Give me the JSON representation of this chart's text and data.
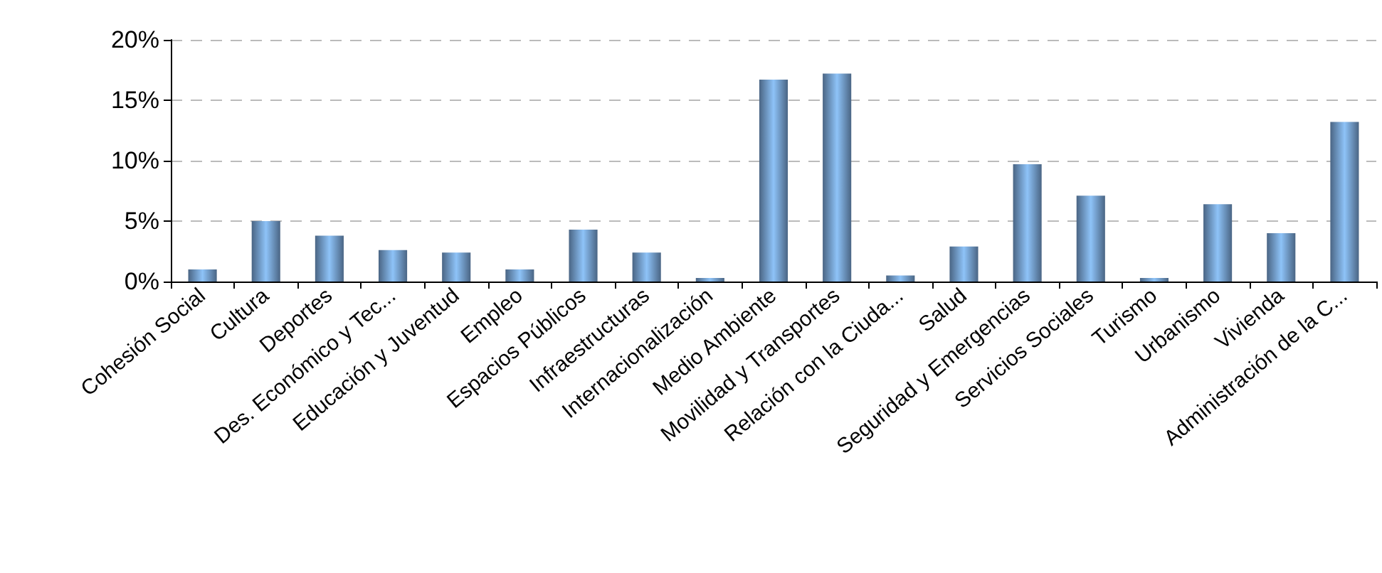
{
  "chart_data": {
    "type": "bar",
    "categories": [
      "Cohesión Social",
      "Cultura",
      "Deportes",
      "Des. Económico y Tec...",
      "Educación y Juventud",
      "Empleo",
      "Espacios Públicos",
      "Infraestructuras",
      "Internacionalización",
      "Medio Ambiente",
      "Movilidad y Transportes",
      "Relación con la Ciuda...",
      "Salud",
      "Seguridad y Emergencias",
      "Servicios Sociales",
      "Turismo",
      "Urbanismo",
      "Vivienda",
      "Administración de la C..."
    ],
    "values": [
      1.0,
      5.0,
      3.8,
      2.6,
      2.4,
      1.0,
      4.3,
      2.4,
      0.3,
      16.7,
      17.2,
      0.5,
      2.9,
      9.7,
      7.1,
      0.3,
      6.4,
      4.0,
      13.2
    ],
    "color": "#8ec3f8",
    "ylim": [
      0,
      20
    ],
    "yticks": [
      {
        "value": 0,
        "label": "0%"
      },
      {
        "value": 5,
        "label": "5%"
      },
      {
        "value": 10,
        "label": "10%"
      },
      {
        "value": 15,
        "label": "15%"
      },
      {
        "value": 20,
        "label": "20%"
      }
    ],
    "grid": "y"
  }
}
